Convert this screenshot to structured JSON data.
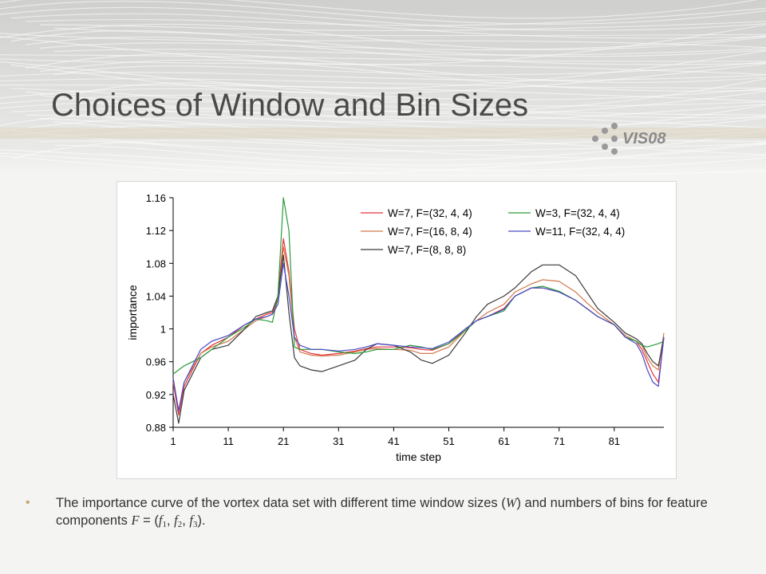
{
  "slide": {
    "title": "Choices of Window and Bin Sizes",
    "logo_text": "VIS08"
  },
  "caption": {
    "part1": "The importance curve of the vortex data set with different time window sizes (",
    "w_symbol": "W",
    "part2": ") and numbers of bins for feature components ",
    "f_symbol": "F",
    "part3": " = (",
    "f1": "f",
    "f1_sub": "1",
    "comma1": ", ",
    "f2": "f",
    "f2_sub": "2",
    "comma2": ", ",
    "f3": "f",
    "f3_sub": "3",
    "part4": ")."
  },
  "chart_data": {
    "type": "line",
    "xlabel": "time step",
    "ylabel": "importance",
    "xlim": [
      1,
      90
    ],
    "ylim": [
      0.88,
      1.16
    ],
    "xticks": [
      1,
      11,
      21,
      31,
      41,
      51,
      61,
      71,
      81
    ],
    "xtick_labels": [
      "1",
      "11",
      "21",
      "31",
      "41",
      "51",
      "61",
      "71",
      "81"
    ],
    "yticks": [
      0.88,
      0.92,
      0.96,
      1.0,
      1.04,
      1.08,
      1.12,
      1.16
    ],
    "ytick_labels": [
      "0.88",
      "0.92",
      "0.96",
      "1",
      "1.04",
      "1.08",
      "1.12",
      "1.16"
    ],
    "grid": false,
    "legend_position": "top-right",
    "x": [
      1,
      2,
      3,
      6,
      8,
      11,
      14,
      16,
      18,
      19,
      20,
      21,
      22,
      23,
      24,
      26,
      28,
      31,
      34,
      36,
      38,
      41,
      44,
      46,
      48,
      51,
      54,
      56,
      58,
      61,
      63,
      66,
      68,
      71,
      74,
      76,
      78,
      81,
      83,
      85,
      86,
      87,
      88,
      89,
      90
    ],
    "series": [
      {
        "name": "W=7, F=(32, 4, 4)",
        "color": "#e8323c",
        "values": [
          0.935,
          0.895,
          0.93,
          0.97,
          0.98,
          0.99,
          1.005,
          1.012,
          1.018,
          1.02,
          1.04,
          1.11,
          1.07,
          1.0,
          0.975,
          0.97,
          0.968,
          0.97,
          0.973,
          0.976,
          0.978,
          0.978,
          0.977,
          0.975,
          0.974,
          0.982,
          1.0,
          1.01,
          1.015,
          1.025,
          1.04,
          1.05,
          1.05,
          1.045,
          1.035,
          1.025,
          1.015,
          1.005,
          0.99,
          0.985,
          0.975,
          0.96,
          0.945,
          0.935,
          0.99
        ]
      },
      {
        "name": "W=7, F=(16, 8, 4)",
        "color": "#d2784a",
        "values": [
          0.94,
          0.9,
          0.935,
          0.97,
          0.978,
          0.985,
          1.0,
          1.01,
          1.015,
          1.018,
          1.035,
          1.1,
          1.065,
          0.99,
          0.972,
          0.968,
          0.967,
          0.968,
          0.972,
          0.975,
          0.976,
          0.975,
          0.974,
          0.97,
          0.97,
          0.978,
          0.998,
          1.01,
          1.02,
          1.03,
          1.045,
          1.055,
          1.06,
          1.058,
          1.045,
          1.032,
          1.02,
          1.005,
          0.992,
          0.985,
          0.98,
          0.965,
          0.955,
          0.95,
          0.995
        ]
      },
      {
        "name": "W=7, F=(8, 8, 8)",
        "color": "#3a3a3a",
        "values": [
          0.92,
          0.885,
          0.925,
          0.965,
          0.975,
          0.98,
          1.0,
          1.015,
          1.02,
          1.022,
          1.04,
          1.09,
          1.02,
          0.965,
          0.955,
          0.95,
          0.948,
          0.955,
          0.962,
          0.975,
          0.982,
          0.98,
          0.972,
          0.962,
          0.958,
          0.968,
          0.995,
          1.015,
          1.03,
          1.04,
          1.05,
          1.07,
          1.078,
          1.078,
          1.065,
          1.045,
          1.025,
          1.008,
          0.995,
          0.988,
          0.982,
          0.97,
          0.96,
          0.955,
          0.99
        ]
      },
      {
        "name": "W=3,   F=(32, 4, 4)",
        "color": "#2a9a3a",
        "values": [
          0.945,
          0.95,
          0.955,
          0.965,
          0.975,
          0.99,
          1.002,
          1.012,
          1.01,
          1.008,
          1.04,
          1.16,
          1.12,
          0.978,
          0.975,
          0.975,
          0.975,
          0.972,
          0.97,
          0.972,
          0.975,
          0.975,
          0.98,
          0.978,
          0.975,
          0.982,
          0.998,
          1.01,
          1.015,
          1.022,
          1.04,
          1.05,
          1.052,
          1.046,
          1.035,
          1.025,
          1.015,
          1.005,
          0.99,
          0.985,
          0.98,
          0.978,
          0.98,
          0.982,
          0.985
        ]
      },
      {
        "name": "W=11, F=(32, 4, 4)",
        "color": "#4a4ac8",
        "values": [
          0.94,
          0.9,
          0.935,
          0.975,
          0.985,
          0.992,
          1.005,
          1.012,
          1.015,
          1.018,
          1.03,
          1.08,
          1.04,
          0.99,
          0.98,
          0.975,
          0.975,
          0.973,
          0.975,
          0.978,
          0.982,
          0.98,
          0.978,
          0.977,
          0.976,
          0.984,
          1.0,
          1.01,
          1.015,
          1.024,
          1.04,
          1.05,
          1.05,
          1.045,
          1.035,
          1.025,
          1.015,
          1.005,
          0.99,
          0.982,
          0.97,
          0.95,
          0.935,
          0.93,
          0.99
        ]
      }
    ],
    "legend_order": [
      0,
      3,
      1,
      4,
      2
    ]
  }
}
